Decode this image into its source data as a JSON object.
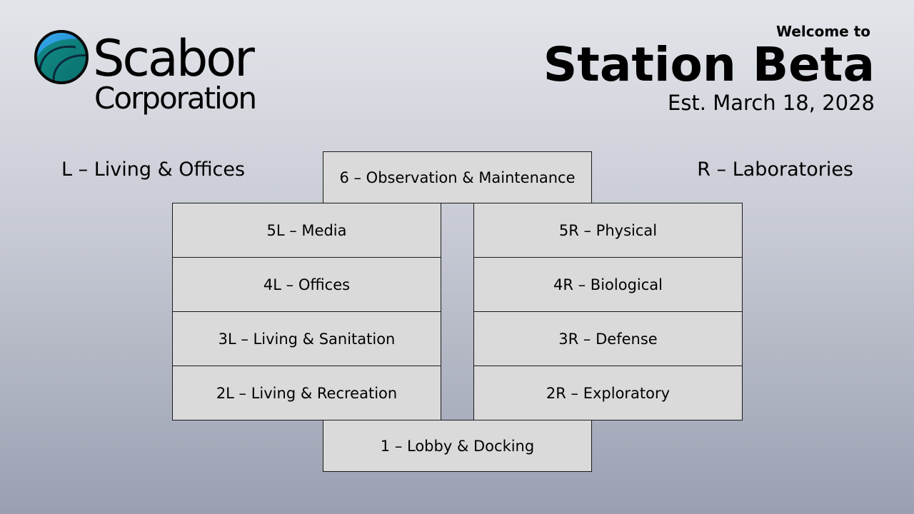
{
  "header": {
    "company_name": "Scabor",
    "company_sub": "Corporation",
    "welcome": "Welcome to",
    "station_name": "Station Beta",
    "established": "Est. March 18, 2028"
  },
  "wings": {
    "left_label": "L – Living & Offices",
    "right_label": "R – Laboratories"
  },
  "floors": {
    "top": "6 – Observation & Maintenance",
    "left": [
      "5L – Media",
      "4L – Offices",
      "3L – Living & Sanitation",
      "2L – Living & Recreation"
    ],
    "right": [
      "5R – Physical",
      "4R – Biological",
      "3R – Defense",
      "2R – Exploratory"
    ],
    "bottom": "1 – Lobby & Docking"
  },
  "colors": {
    "floor_fill": "#dadada",
    "floor_border": "#1a1a1a",
    "logo_blue": "#1a93d8",
    "logo_teal": "#0f8a82"
  }
}
